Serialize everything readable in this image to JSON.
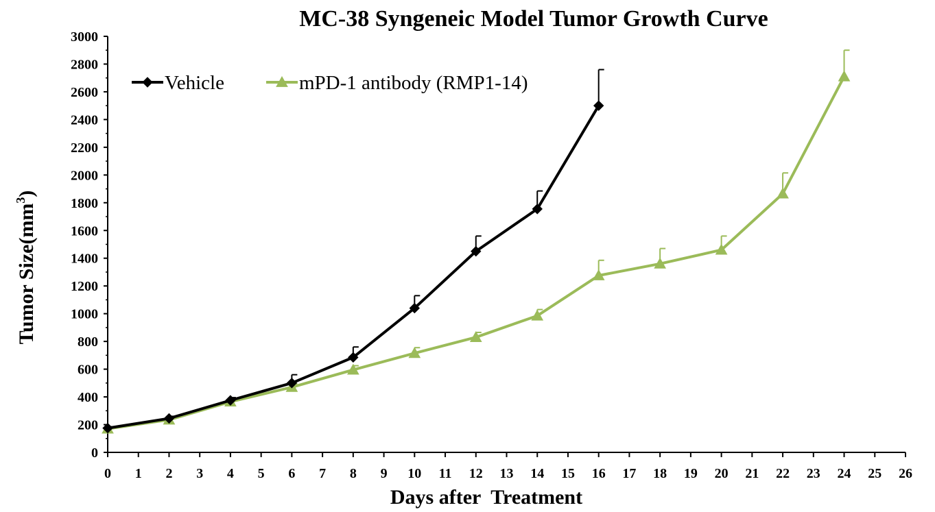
{
  "chart_data": {
    "type": "line",
    "title": "MC-38 Syngeneic Model Tumor Growth Curve",
    "xlabel": "Days after  Treatment",
    "ylabel": "Tumor Size(mm",
    "ylabel_sup": "3",
    "ylabel_close": ")",
    "xlim": [
      0,
      26
    ],
    "ylim": [
      0,
      3000
    ],
    "x_ticks": [
      0,
      1,
      2,
      3,
      4,
      5,
      6,
      7,
      8,
      9,
      10,
      11,
      12,
      13,
      14,
      15,
      16,
      17,
      18,
      19,
      20,
      21,
      22,
      23,
      24,
      25,
      26
    ],
    "y_ticks": [
      0,
      200,
      400,
      600,
      800,
      1000,
      1200,
      1400,
      1600,
      1800,
      2000,
      2200,
      2400,
      2600,
      2800,
      3000
    ],
    "grid": false,
    "legend_position": "top-left",
    "series": [
      {
        "name": "Vehicle",
        "color": "#000000",
        "marker": "diamond",
        "x": [
          0,
          2,
          4,
          6,
          8,
          10,
          12,
          14,
          16
        ],
        "y": [
          175,
          245,
          375,
          500,
          685,
          1040,
          1450,
          1755,
          2500
        ],
        "error": [
          10,
          15,
          20,
          60,
          75,
          90,
          110,
          130,
          260
        ]
      },
      {
        "name": "mPD-1 antibody (RMP1-14)",
        "color": "#9bbb59",
        "marker": "triangle",
        "x": [
          0,
          2,
          4,
          6,
          8,
          10,
          12,
          14,
          16,
          18,
          20,
          22,
          24
        ],
        "y": [
          170,
          235,
          365,
          470,
          595,
          715,
          830,
          985,
          1275,
          1360,
          1460,
          1865,
          2710
        ],
        "error": [
          10,
          15,
          20,
          25,
          30,
          40,
          35,
          45,
          110,
          110,
          100,
          150,
          190
        ]
      }
    ]
  }
}
